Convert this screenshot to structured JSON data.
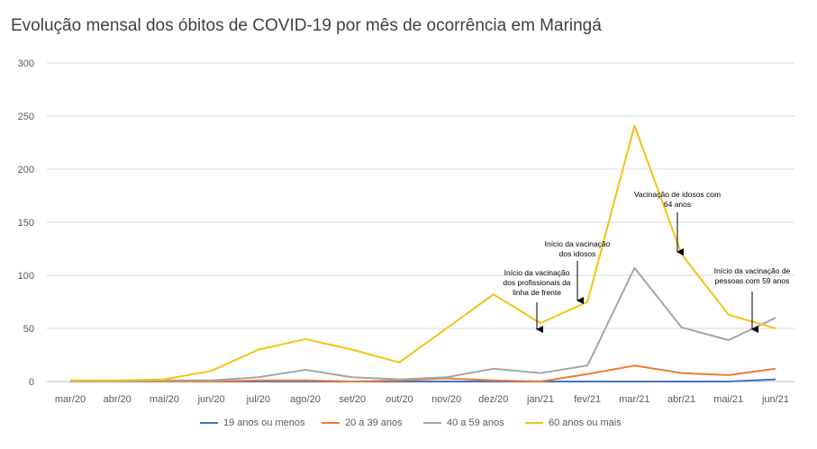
{
  "chart_data": {
    "type": "line",
    "title": "Evolução mensal dos óbitos de COVID-19 por mês de ocorrência em Maringá",
    "xlabel": "",
    "ylabel": "",
    "ylim": [
      0,
      300
    ],
    "yticks": [
      0,
      50,
      100,
      150,
      200,
      250,
      300
    ],
    "grid": true,
    "legend_position": "bottom",
    "categories": [
      "mar/20",
      "abr/20",
      "mai/20",
      "jun/20",
      "jul/20",
      "ago/20",
      "set/20",
      "out/20",
      "nov/20",
      "dez/20",
      "jan/21",
      "fev/21",
      "mar/21",
      "abr/21",
      "mai/21",
      "jun/21"
    ],
    "series": [
      {
        "name": "19 anos ou menos",
        "color": "#4472C4",
        "values": [
          0,
          0,
          0,
          0,
          0,
          0,
          0,
          0,
          0,
          0,
          0,
          0,
          0,
          0,
          0,
          2
        ]
      },
      {
        "name": "20 a 39 anos",
        "color": "#ED7D31",
        "values": [
          0,
          0,
          0,
          0,
          1,
          1,
          0,
          1,
          3,
          1,
          0,
          7,
          15,
          8,
          6,
          12
        ]
      },
      {
        "name": "40 a 59 anos",
        "color": "#A5A5A5",
        "values": [
          0,
          0,
          1,
          1,
          4,
          11,
          4,
          2,
          4,
          12,
          8,
          15,
          107,
          51,
          39,
          60
        ]
      },
      {
        "name": "60 anos ou mais",
        "color": "#F2C314",
        "values": [
          1,
          1,
          2,
          10,
          30,
          40,
          30,
          18,
          50,
          82,
          55,
          75,
          241,
          120,
          63,
          50
        ]
      }
    ],
    "annotations": [
      {
        "lines": [
          "Início da vacinação",
          "dos profissionais da",
          "linha de frente"
        ],
        "x": "jan/21",
        "y": 55
      },
      {
        "lines": [
          "Início da vacinação",
          "dos idosos"
        ],
        "x": "fev/21",
        "y": 75
      },
      {
        "lines": [
          "Vacinação de idosos com",
          "64 anos"
        ],
        "x": "abr/21",
        "y": 120
      },
      {
        "lines": [
          "Início da vacinação de",
          "pessoas com 59 anos"
        ],
        "x": "jun/21",
        "y": 50
      }
    ]
  }
}
